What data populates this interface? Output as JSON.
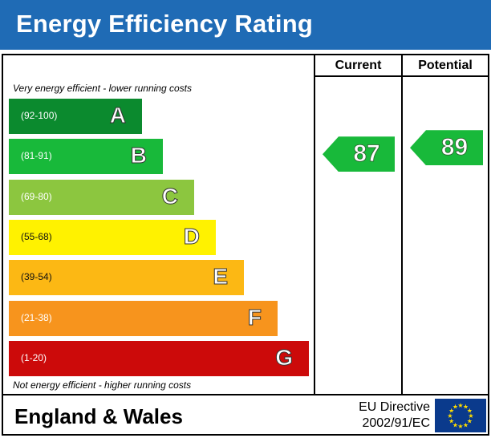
{
  "header": {
    "title": "Energy Efficiency Rating"
  },
  "columns": {
    "current_label": "Current",
    "potential_label": "Potential"
  },
  "notes": {
    "top": "Very energy efficient - lower running costs",
    "bottom": "Not energy efficient - higher running costs"
  },
  "footer": {
    "region": "England & Wales",
    "directive_line1": "EU Directive",
    "directive_line2": "2002/91/EC"
  },
  "chart_data": {
    "type": "bar",
    "title": "Energy Efficiency Rating",
    "categories": [
      "A",
      "B",
      "C",
      "D",
      "E",
      "F",
      "G"
    ],
    "bands": [
      {
        "letter": "A",
        "range": "(92-100)",
        "color": "#008054"
      },
      {
        "letter": "B",
        "range": "(81-91)",
        "color": "#19b459"
      },
      {
        "letter": "C",
        "range": "(69-80)",
        "color": "#8dce46"
      },
      {
        "letter": "D",
        "range": "(55-68)",
        "color": "#ffd500"
      },
      {
        "letter": "E",
        "range": "(39-54)",
        "color": "#fcaa65"
      },
      {
        "letter": "F",
        "range": "(21-38)",
        "color": "#ef8023"
      },
      {
        "letter": "G",
        "range": "(1-20)",
        "color": "#e9153b"
      }
    ],
    "current": {
      "value": 87,
      "band": "B",
      "color": "#19b459"
    },
    "potential": {
      "value": 89,
      "band": "B",
      "color": "#19b459"
    }
  },
  "palette": {
    "header_blue": "#1f6bb5",
    "A": "#0b8a2e",
    "B": "#18b93a",
    "C": "#8cc63f",
    "D": "#fff200",
    "E": "#fcb814",
    "F": "#f7941d",
    "G": "#cc0a0a",
    "arrow_green": "#18b93a",
    "eu_blue": "#0a3a8c",
    "eu_star": "#ffdd00"
  }
}
